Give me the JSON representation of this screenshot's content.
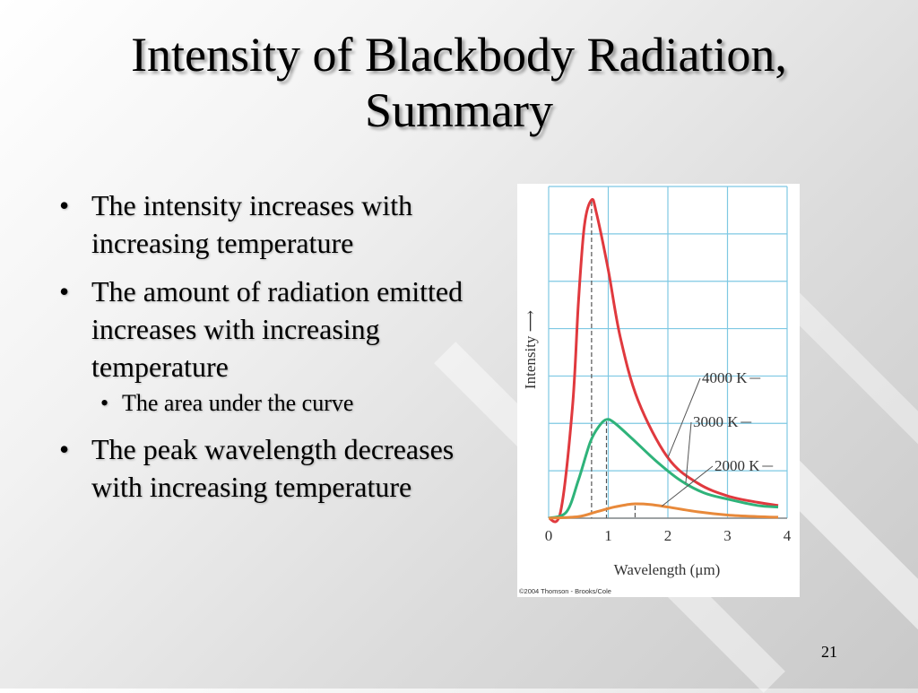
{
  "slide": {
    "title_line1": "Intensity of Blackbody Radiation,",
    "title_line2": "Summary",
    "bullets": [
      "The intensity increases with increasing temperature",
      "The amount of radiation emitted increases with increasing temperature",
      "The peak wavelength decreases with increasing temperature"
    ],
    "sub_bullet": "The area under the curve",
    "page_number": "21"
  },
  "colors": {
    "grid": "#7ec8e3",
    "curve_4000": "#e0393e",
    "curve_3000": "#2fb37a",
    "curve_2000": "#e8893a"
  },
  "chart_data": {
    "type": "line",
    "xlabel": "Wavelength (μm)",
    "ylabel": "Intensity ⟶",
    "xlim": [
      0,
      4
    ],
    "x_ticks": [
      "0",
      "1",
      "2",
      "3",
      "4"
    ],
    "grid": true,
    "copyright": "©2004 Thomson - Brooks/Cole",
    "series": [
      {
        "name": "4000 K",
        "peak_x": 0.72,
        "x": [
          0,
          0.2,
          0.4,
          0.5,
          0.6,
          0.72,
          0.8,
          1.0,
          1.2,
          1.5,
          2.0,
          2.5,
          3.0,
          3.5,
          3.85
        ],
        "y": [
          0,
          0.02,
          0.35,
          0.68,
          0.92,
          1.0,
          0.96,
          0.78,
          0.57,
          0.37,
          0.19,
          0.11,
          0.07,
          0.05,
          0.04
        ]
      },
      {
        "name": "3000 K",
        "peak_x": 0.97,
        "x": [
          0,
          0.3,
          0.5,
          0.7,
          0.85,
          0.97,
          1.1,
          1.4,
          1.8,
          2.2,
          2.6,
          3.0,
          3.5,
          3.85
        ],
        "y": [
          0,
          0.02,
          0.12,
          0.24,
          0.29,
          0.31,
          0.3,
          0.25,
          0.18,
          0.12,
          0.08,
          0.06,
          0.04,
          0.035
        ]
      },
      {
        "name": "2000 K",
        "peak_x": 1.45,
        "x": [
          0,
          0.5,
          0.8,
          1.1,
          1.3,
          1.45,
          1.7,
          2.0,
          2.5,
          3.0,
          3.5,
          3.85
        ],
        "y": [
          0,
          0.005,
          0.02,
          0.035,
          0.042,
          0.045,
          0.043,
          0.035,
          0.02,
          0.01,
          0.005,
          0.003
        ]
      }
    ]
  }
}
